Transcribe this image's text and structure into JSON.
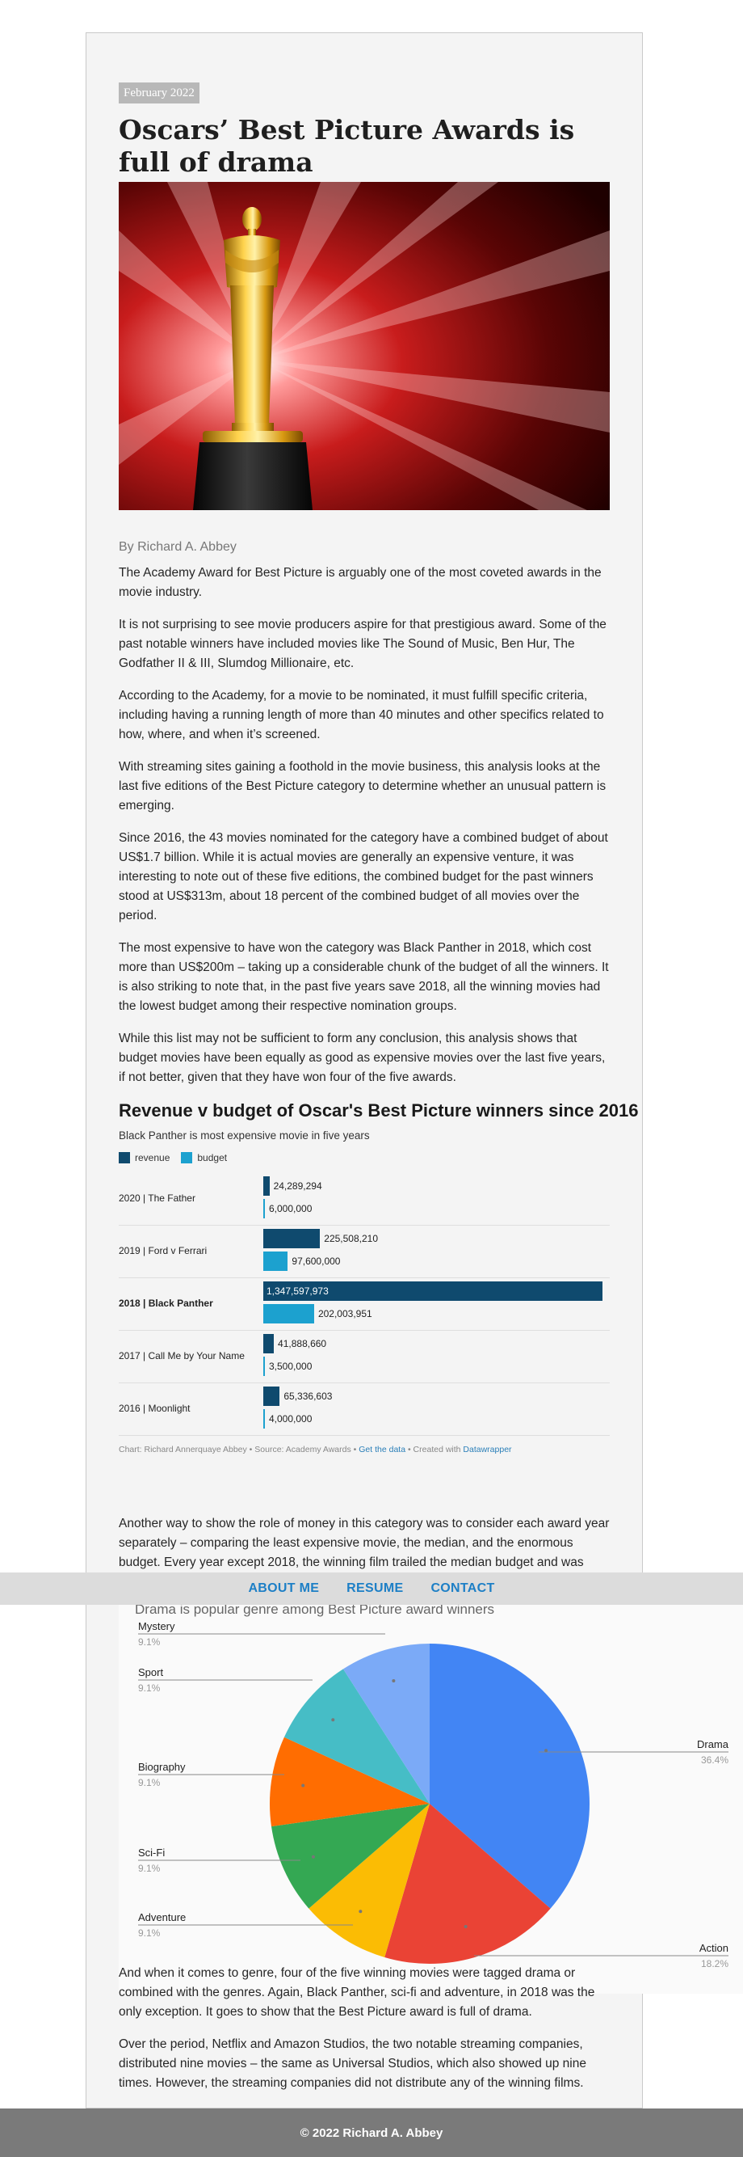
{
  "article": {
    "date": "February 2022",
    "title": "Oscars’ Best Picture Awards is full of drama",
    "byline": "By Richard A. Abbey",
    "paragraphs": [
      "The Academy Award for Best Picture is arguably one of the most coveted awards in the movie industry.",
      "It is not surprising to see movie producers aspire for that prestigious award. Some of the past notable winners have included movies like The Sound of Music, Ben Hur, The Godfather II & III, Slumdog Millionaire, etc.",
      "According to the Academy, for a movie to be nominated, it must fulfill specific criteria, including having a running length of more than 40 minutes and other specifics related to how, where, and when it’s screened.",
      "With streaming sites gaining a foothold in the movie business, this analysis looks at the last five editions of the Best Picture category to determine whether an unusual pattern is emerging.",
      "Since 2016, the 43 movies nominated for the category have a combined budget of about US$1.7 billion. While it is actual movies are generally an expensive venture, it was interesting to note out of these five editions, the combined budget for the past winners stood at US$313m, about 18 percent of the combined budget of all movies over the period.",
      "The most expensive to have won the category was Black Panther in 2018, which cost more than US$200m – taking up a considerable chunk of the budget of all the winners. It is also striking to note that, in the past five years save 2018, all the winning movies had the lowest budget among their respective nomination groups.",
      "While this list may not be sufficient to form any conclusion, this analysis shows that budget movies have been equally as good as expensive movies over the last five years, if not better, given that they have won four of the five awards.",
      "Another way to show the role of money in this category was to consider each award year separately – comparing the least expensive movie, the median, and the enormous budget. Every year except 2018, the winning film trailed the median budget and was nowhere close to the most expensive movie.",
      "And when it comes to genre, four of the five winning movies were tagged drama or combined with the genres. Again, Black Panther, sci-fi and adventure, in 2018 was the only exception. It goes to show that the Best Picture award is full of drama.",
      "Over the period, Netflix and Amazon Studios, the two notable streaming companies, distributed nine movies – the same as Universal Studios, which also showed up nine times. However, the streaming companies did not distribute any of the winning films."
    ]
  },
  "chart_data": [
    {
      "type": "bar",
      "title": "Revenue v budget of Oscar's Best Picture winners since 2016",
      "subtitle": "Black Panther is most expensive movie in five years",
      "categories": [
        "2020  |  The Father",
        "2019  |  Ford v Ferrari",
        "2018  |  Black Panther",
        "2017  |  Call Me by Your Name",
        "2016  |  Moonlight"
      ],
      "series": [
        {
          "name": "revenue",
          "color": "#0f4a6e",
          "values": [
            24289294,
            225508210,
            1347597973,
            41888660,
            65336603
          ],
          "labels": [
            "24,289,294",
            "225,508,210",
            "1,347,597,973",
            "41,888,660",
            "65,336,603"
          ]
        },
        {
          "name": "budget",
          "color": "#1ca1cf",
          "values": [
            6000000,
            97600000,
            202003951,
            3500000,
            4000000
          ],
          "labels": [
            "6,000,000",
            "97,600,000",
            "202,003,951",
            "3,500,000",
            "4,000,000"
          ]
        }
      ],
      "highlight": "2018  |  Black Panther",
      "legend": "top-left",
      "footer": {
        "credit": "Chart: Richard Annerquaye Abbey • Source: Academy Awards • ",
        "get_data": "Get the data",
        "sep": " • Created with ",
        "tool": "Datawrapper"
      }
    },
    {
      "type": "pie",
      "title": "Drama is popular genre among Best Picture award winners",
      "slices": [
        {
          "label": "Drama",
          "value": 36.4,
          "pct": "36.4%",
          "color": "#4285f4"
        },
        {
          "label": "Action",
          "value": 18.2,
          "pct": "18.2%",
          "color": "#ea4335"
        },
        {
          "label": "Adventure",
          "value": 9.1,
          "pct": "9.1%",
          "color": "#fbbc04"
        },
        {
          "label": "Sci-Fi",
          "value": 9.1,
          "pct": "9.1%",
          "color": "#34a853"
        },
        {
          "label": "Biography",
          "value": 9.1,
          "pct": "9.1%",
          "color": "#ff6d01"
        },
        {
          "label": "Sport",
          "value": 9.1,
          "pct": "9.1%",
          "color": "#46bdc6"
        },
        {
          "label": "Mystery",
          "value": 9.1,
          "pct": "9.1%",
          "color": "#7baaf7"
        }
      ]
    }
  ],
  "nav": {
    "items": [
      "ABOUT ME",
      "RESUME",
      "CONTACT"
    ],
    "link_color": "#1d7fc6"
  },
  "footer": {
    "text": "© 2022 Richard A. Abbey"
  }
}
